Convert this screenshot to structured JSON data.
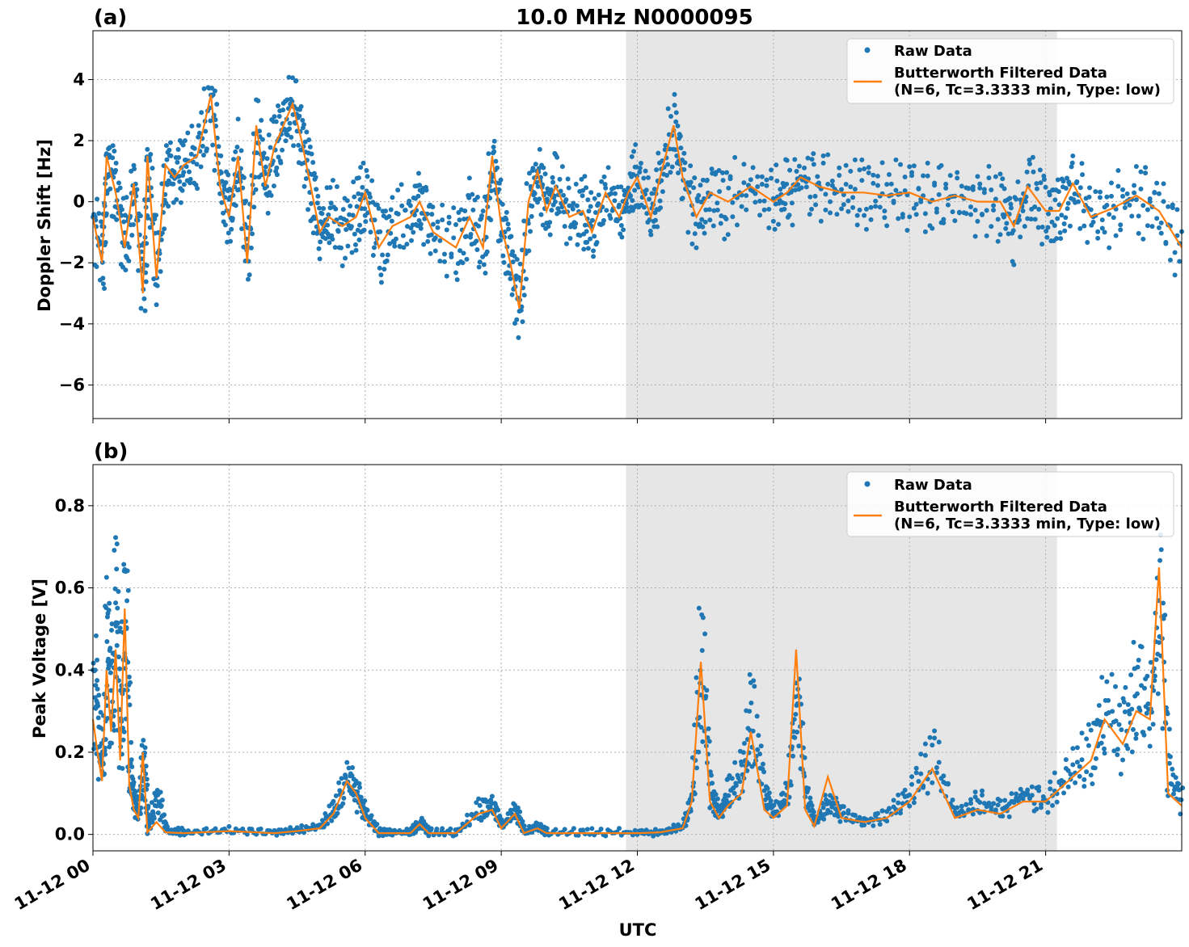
{
  "chart_data": [
    {
      "type": "line",
      "panel_label": "(a)",
      "title": "10.0 MHz N0000095",
      "ylabel": "Doppler Shift [Hz]",
      "xlabel": "",
      "xlim_hours": [
        0,
        24
      ],
      "ylim": [
        -7.1,
        5.6
      ],
      "yticks": [
        4,
        2,
        0,
        -2,
        -4,
        -6
      ],
      "ytick_labels": [
        "4",
        "2",
        "0",
        "−2",
        "−4",
        "−6"
      ],
      "grid": true,
      "legend_position": "upper-right",
      "shaded_interval_hours": [
        11.75,
        21.25
      ],
      "series": [
        {
          "name": "Raw Data",
          "kind": "scatter",
          "color": "#1f77b4",
          "x_hours": [
            0,
            0.2,
            0.3,
            0.5,
            0.7,
            0.9,
            1.1,
            1.2,
            1.4,
            1.6,
            1.8,
            2.0,
            2.3,
            2.6,
            2.8,
            3.0,
            3.2,
            3.4,
            3.6,
            3.8,
            4.0,
            4.2,
            4.4,
            4.6,
            4.8,
            5.0,
            5.2,
            5.5,
            5.8,
            6.0,
            6.3,
            6.6,
            7.0,
            7.2,
            7.5,
            8.0,
            8.3,
            8.6,
            8.8,
            9.0,
            9.2,
            9.4,
            9.6,
            9.8,
            10.0,
            10.2,
            10.5,
            10.8,
            11.0,
            11.3,
            11.6,
            11.8,
            12.0,
            12.3,
            12.5,
            12.8,
            13.0,
            13.3,
            13.6,
            14.0,
            14.5,
            15.0,
            15.3,
            15.6,
            16.0,
            16.5,
            17.0,
            17.5,
            18.0,
            18.5,
            19.0,
            19.5,
            20.0,
            20.3,
            20.6,
            21.0,
            21.3,
            21.6,
            22.0,
            22.5,
            23.0,
            23.5,
            24.0
          ],
          "y_hz": [
            -0.5,
            -2.0,
            1.5,
            0.3,
            -1.5,
            0.6,
            -3.0,
            1.5,
            -2.5,
            1.2,
            0.8,
            1.2,
            1.5,
            3.5,
            0.5,
            -0.5,
            1.5,
            -2.0,
            2.5,
            0.5,
            1.8,
            2.5,
            3.2,
            2.0,
            0.5,
            -1.0,
            -0.5,
            -0.8,
            -0.5,
            0.3,
            -1.5,
            -0.8,
            -0.5,
            0.0,
            -1.0,
            -1.5,
            -0.5,
            -1.5,
            1.5,
            -0.8,
            -2.0,
            -3.5,
            0.0,
            1.0,
            -0.3,
            0.5,
            -0.5,
            -0.3,
            -1.0,
            0.3,
            -0.5,
            0.3,
            0.8,
            -0.5,
            0.8,
            2.5,
            0.8,
            -0.5,
            0.3,
            0.0,
            0.5,
            0.0,
            0.3,
            0.8,
            0.5,
            0.3,
            0.3,
            0.2,
            0.3,
            0.0,
            0.2,
            0.0,
            0.0,
            -0.8,
            0.5,
            -0.3,
            -0.3,
            0.6,
            -0.5,
            -0.2,
            0.2,
            -0.3,
            -1.5
          ]
        },
        {
          "name": "Butterworth Filtered Data\n(N=6, Tc=3.3333 min, Type: low)",
          "kind": "line",
          "color": "#ff7f0e",
          "x_hours": [
            0,
            0.2,
            0.3,
            0.5,
            0.7,
            0.9,
            1.1,
            1.2,
            1.4,
            1.6,
            1.8,
            2.0,
            2.3,
            2.6,
            2.8,
            3.0,
            3.2,
            3.4,
            3.6,
            3.8,
            4.0,
            4.2,
            4.4,
            4.6,
            4.8,
            5.0,
            5.2,
            5.5,
            5.8,
            6.0,
            6.3,
            6.6,
            7.0,
            7.2,
            7.5,
            8.0,
            8.3,
            8.6,
            8.8,
            9.0,
            9.2,
            9.4,
            9.6,
            9.8,
            10.0,
            10.2,
            10.5,
            10.8,
            11.0,
            11.3,
            11.6,
            11.8,
            12.0,
            12.3,
            12.5,
            12.8,
            13.0,
            13.3,
            13.6,
            14.0,
            14.5,
            15.0,
            15.3,
            15.6,
            16.0,
            16.5,
            17.0,
            17.5,
            18.0,
            18.5,
            19.0,
            19.5,
            20.0,
            20.3,
            20.6,
            21.0,
            21.3,
            21.6,
            22.0,
            22.5,
            23.0,
            23.5,
            24.0
          ],
          "y_hz": [
            -0.5,
            -2.0,
            1.5,
            0.3,
            -1.5,
            0.6,
            -3.0,
            1.5,
            -2.5,
            1.2,
            0.8,
            1.2,
            1.5,
            3.5,
            0.5,
            -0.5,
            1.5,
            -2.0,
            2.5,
            0.5,
            1.8,
            2.5,
            3.2,
            2.0,
            0.5,
            -1.0,
            -0.5,
            -0.8,
            -0.5,
            0.3,
            -1.5,
            -0.8,
            -0.5,
            0.0,
            -1.0,
            -1.5,
            -0.5,
            -1.5,
            1.5,
            -0.8,
            -2.0,
            -3.5,
            0.0,
            1.0,
            -0.3,
            0.5,
            -0.5,
            -0.3,
            -1.0,
            0.3,
            -0.5,
            0.3,
            0.8,
            -0.5,
            0.8,
            2.5,
            0.8,
            -0.5,
            0.3,
            0.0,
            0.5,
            0.0,
            0.3,
            0.8,
            0.5,
            0.3,
            0.3,
            0.2,
            0.3,
            0.0,
            0.2,
            0.0,
            0.0,
            -0.8,
            0.5,
            -0.3,
            -0.3,
            0.6,
            -0.5,
            -0.2,
            0.2,
            -0.3,
            -1.5
          ]
        }
      ]
    },
    {
      "type": "line",
      "panel_label": "(b)",
      "title": "",
      "ylabel": "Peak Voltage [V]",
      "xlabel": "UTC",
      "xlim_hours": [
        0,
        24
      ],
      "ylim": [
        -0.04,
        0.9
      ],
      "yticks": [
        0.8,
        0.6,
        0.4,
        0.2,
        0.0
      ],
      "ytick_labels": [
        "0.8",
        "0.6",
        "0.4",
        "0.2",
        "0.0"
      ],
      "xticks_hours": [
        0,
        3,
        6,
        9,
        12,
        15,
        18,
        21
      ],
      "xtick_labels": [
        "11-12 00",
        "11-12 03",
        "11-12 06",
        "11-12 09",
        "11-12 12",
        "11-12 15",
        "11-12 18",
        "11-12 21"
      ],
      "grid": true,
      "legend_position": "upper-right",
      "shaded_interval_hours": [
        11.75,
        21.25
      ],
      "series": [
        {
          "name": "Raw Data",
          "kind": "scatter",
          "color": "#1f77b4",
          "x_hours": [
            0,
            0.1,
            0.2,
            0.3,
            0.4,
            0.5,
            0.6,
            0.7,
            0.8,
            0.9,
            1.0,
            1.1,
            1.2,
            1.4,
            1.6,
            2.0,
            3.0,
            4.0,
            4.5,
            5.0,
            5.3,
            5.6,
            5.8,
            6.0,
            6.3,
            6.6,
            7.0,
            7.2,
            7.4,
            8.0,
            8.5,
            8.8,
            9.0,
            9.3,
            9.5,
            9.8,
            10.0,
            11.0,
            12.0,
            12.5,
            13.0,
            13.2,
            13.4,
            13.6,
            13.8,
            14.0,
            14.3,
            14.5,
            14.8,
            15.0,
            15.3,
            15.5,
            15.7,
            15.9,
            16.2,
            16.5,
            17.0,
            17.5,
            18.0,
            18.5,
            19.0,
            19.5,
            20.0,
            20.5,
            21.0,
            21.5,
            22.0,
            22.3,
            22.7,
            23.0,
            23.3,
            23.5,
            23.7,
            24.0
          ],
          "y_v": [
            0.4,
            0.25,
            0.15,
            0.5,
            0.3,
            0.6,
            0.2,
            0.6,
            0.15,
            0.08,
            0.05,
            0.2,
            0.01,
            0.1,
            0.01,
            0.005,
            0.01,
            0.005,
            0.01,
            0.02,
            0.06,
            0.14,
            0.1,
            0.05,
            0.005,
            0.005,
            0.005,
            0.03,
            0.005,
            0.005,
            0.06,
            0.07,
            0.02,
            0.06,
            0.005,
            0.02,
            0.005,
            0.005,
            0.005,
            0.005,
            0.02,
            0.1,
            0.45,
            0.1,
            0.05,
            0.1,
            0.15,
            0.3,
            0.1,
            0.05,
            0.1,
            0.35,
            0.1,
            0.03,
            0.08,
            0.05,
            0.03,
            0.05,
            0.1,
            0.2,
            0.05,
            0.08,
            0.06,
            0.1,
            0.08,
            0.15,
            0.2,
            0.3,
            0.25,
            0.35,
            0.3,
            0.6,
            0.15,
            0.08
          ]
        },
        {
          "name": "Butterworth Filtered Data\n(N=6, Tc=3.3333 min, Type: low)",
          "kind": "line",
          "color": "#ff7f0e",
          "x_hours": [
            0,
            0.1,
            0.2,
            0.3,
            0.4,
            0.5,
            0.6,
            0.7,
            0.8,
            0.9,
            1.0,
            1.1,
            1.2,
            1.4,
            1.6,
            2.0,
            3.0,
            4.0,
            4.5,
            5.0,
            5.3,
            5.6,
            5.8,
            6.0,
            6.3,
            6.6,
            7.0,
            7.2,
            7.4,
            8.0,
            8.5,
            8.8,
            9.0,
            9.3,
            9.5,
            9.8,
            10.0,
            11.0,
            12.0,
            12.5,
            13.0,
            13.2,
            13.4,
            13.6,
            13.8,
            14.0,
            14.3,
            14.5,
            14.8,
            15.0,
            15.3,
            15.5,
            15.7,
            15.9,
            16.2,
            16.5,
            17.0,
            17.5,
            18.0,
            18.5,
            19.0,
            19.5,
            20.0,
            20.5,
            21.0,
            21.5,
            22.0,
            22.3,
            22.7,
            23.0,
            23.3,
            23.5,
            23.7,
            24.0
          ],
          "y_v": [
            0.28,
            0.2,
            0.13,
            0.4,
            0.25,
            0.45,
            0.18,
            0.55,
            0.12,
            0.06,
            0.04,
            0.2,
            0.005,
            0.03,
            0.005,
            0.003,
            0.008,
            0.003,
            0.008,
            0.015,
            0.05,
            0.13,
            0.1,
            0.04,
            0.003,
            0.003,
            0.003,
            0.025,
            0.003,
            0.003,
            0.05,
            0.06,
            0.015,
            0.05,
            0.003,
            0.015,
            0.003,
            0.003,
            0.003,
            0.005,
            0.015,
            0.08,
            0.42,
            0.08,
            0.04,
            0.07,
            0.1,
            0.25,
            0.06,
            0.04,
            0.07,
            0.45,
            0.06,
            0.02,
            0.14,
            0.04,
            0.03,
            0.04,
            0.08,
            0.16,
            0.04,
            0.06,
            0.05,
            0.08,
            0.08,
            0.13,
            0.18,
            0.28,
            0.22,
            0.3,
            0.28,
            0.65,
            0.1,
            0.07
          ]
        }
      ]
    }
  ],
  "legend": {
    "raw_label": "Raw Data",
    "filtered_label_line1": "Butterworth Filtered Data",
    "filtered_label_line2": "(N=6, Tc=3.3333 min, Type: low)"
  }
}
